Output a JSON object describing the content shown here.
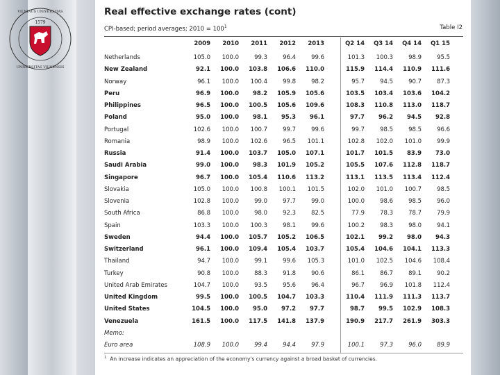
{
  "logo": {
    "top_text": "VILNIAUS UNIVERSITAS",
    "bottom_text": "UNIVERSITAS VILNENSIS",
    "year": "1579",
    "accent": "#c8102e"
  },
  "title": "Real effective exchange rates (cont)",
  "subtitle": "CPI-based; period averages; 2010 = 100",
  "subtitle_note": "1",
  "table_label": "Table I2",
  "columns": [
    "2009",
    "2010",
    "2011",
    "2012",
    "2013",
    "Q2 14",
    "Q3 14",
    "Q4 14",
    "Q1 15"
  ],
  "rows": [
    {
      "name": "Netherlands",
      "values": [
        "105.0",
        "100.0",
        "99.3",
        "96.4",
        "99.6",
        "101.3",
        "100.3",
        "98.9",
        "95.5"
      ]
    },
    {
      "name": "New Zealand",
      "values": [
        "92.1",
        "100.0",
        "103.8",
        "106.6",
        "110.0",
        "115.9",
        "114.4",
        "110.9",
        "111.6"
      ]
    },
    {
      "name": "Norway",
      "values": [
        "96.1",
        "100.0",
        "100.4",
        "99.8",
        "98.2",
        "95.7",
        "94.5",
        "90.7",
        "87.3"
      ]
    },
    {
      "name": "Peru",
      "values": [
        "96.9",
        "100.0",
        "98.2",
        "105.9",
        "105.6",
        "103.5",
        "103.4",
        "103.6",
        "104.2"
      ]
    },
    {
      "name": "Philippines",
      "values": [
        "96.5",
        "100.0",
        "100.5",
        "105.6",
        "109.6",
        "108.3",
        "110.8",
        "113.0",
        "118.7"
      ]
    },
    {
      "name": "Poland",
      "values": [
        "95.0",
        "100.0",
        "98.1",
        "95.3",
        "96.1",
        "97.7",
        "96.2",
        "94.5",
        "92.8"
      ]
    },
    {
      "name": "Portugal",
      "values": [
        "102.6",
        "100.0",
        "100.7",
        "99.7",
        "99.6",
        "99.7",
        "98.5",
        "98.5",
        "96.6"
      ]
    },
    {
      "name": "Romania",
      "values": [
        "98.9",
        "100.0",
        "102.6",
        "96.5",
        "101.1",
        "102.8",
        "102.0",
        "101.0",
        "99.9"
      ]
    },
    {
      "name": "Russia",
      "values": [
        "91.4",
        "100.0",
        "103.7",
        "105.0",
        "107.1",
        "101.7",
        "101.5",
        "83.9",
        "73.0"
      ]
    },
    {
      "name": "Saudi Arabia",
      "values": [
        "99.0",
        "100.0",
        "98.3",
        "101.9",
        "105.2",
        "105.5",
        "107.6",
        "112.8",
        "118.7"
      ]
    },
    {
      "name": "Singapore",
      "values": [
        "96.7",
        "100.0",
        "105.4",
        "110.6",
        "113.2",
        "113.1",
        "113.5",
        "113.4",
        "112.4"
      ]
    },
    {
      "name": "Slovakia",
      "values": [
        "105.0",
        "100.0",
        "100.8",
        "100.1",
        "101.5",
        "102.0",
        "101.0",
        "100.7",
        "98.5"
      ]
    },
    {
      "name": "Slovenia",
      "values": [
        "102.8",
        "100.0",
        "99.0",
        "97.7",
        "99.0",
        "100.0",
        "98.6",
        "98.5",
        "96.0"
      ]
    },
    {
      "name": "South Africa",
      "values": [
        "86.8",
        "100.0",
        "98.0",
        "92.3",
        "82.5",
        "77.9",
        "78.3",
        "78.7",
        "79.9"
      ]
    },
    {
      "name": "Spain",
      "values": [
        "103.3",
        "100.0",
        "100.3",
        "98.1",
        "99.6",
        "100.2",
        "98.3",
        "98.0",
        "94.1"
      ]
    },
    {
      "name": "Sweden",
      "values": [
        "94.4",
        "100.0",
        "105.7",
        "105.2",
        "106.5",
        "102.1",
        "99.2",
        "98.0",
        "94.3"
      ]
    },
    {
      "name": "Switzerland",
      "values": [
        "96.1",
        "100.0",
        "109.4",
        "105.4",
        "103.7",
        "105.4",
        "104.6",
        "104.1",
        "113.3"
      ]
    },
    {
      "name": "Thailand",
      "values": [
        "94.7",
        "100.0",
        "99.1",
        "99.6",
        "105.3",
        "101.0",
        "102.5",
        "104.6",
        "108.4"
      ]
    },
    {
      "name": "Turkey",
      "values": [
        "90.8",
        "100.0",
        "88.3",
        "91.8",
        "90.6",
        "86.1",
        "86.7",
        "89.1",
        "90.2"
      ]
    },
    {
      "name": "United Arab Emirates",
      "values": [
        "104.7",
        "100.0",
        "93.5",
        "95.6",
        "96.4",
        "96.7",
        "96.9",
        "101.8",
        "112.4"
      ]
    },
    {
      "name": "United Kingdom",
      "values": [
        "99.5",
        "100.0",
        "100.5",
        "104.7",
        "103.3",
        "110.4",
        "111.9",
        "111.3",
        "113.7"
      ]
    },
    {
      "name": "United States",
      "values": [
        "104.5",
        "100.0",
        "95.0",
        "97.2",
        "97.7",
        "98.7",
        "99.5",
        "102.9",
        "108.3"
      ]
    },
    {
      "name": "Venezuela",
      "values": [
        "161.5",
        "100.0",
        "117.5",
        "141.8",
        "137.9",
        "190.9",
        "217.7",
        "261.9",
        "303.3"
      ]
    }
  ],
  "memo_label": "Memo:",
  "memo_row": {
    "name": "Euro area",
    "values": [
      "108.9",
      "100.0",
      "99.4",
      "94.4",
      "97.9",
      "100.1",
      "97.3",
      "96.0",
      "89.9"
    ]
  },
  "footnote": "An increase indicates an appreciation of the economy's currency against a broad basket of currencies.",
  "footnote_mark": "1"
}
